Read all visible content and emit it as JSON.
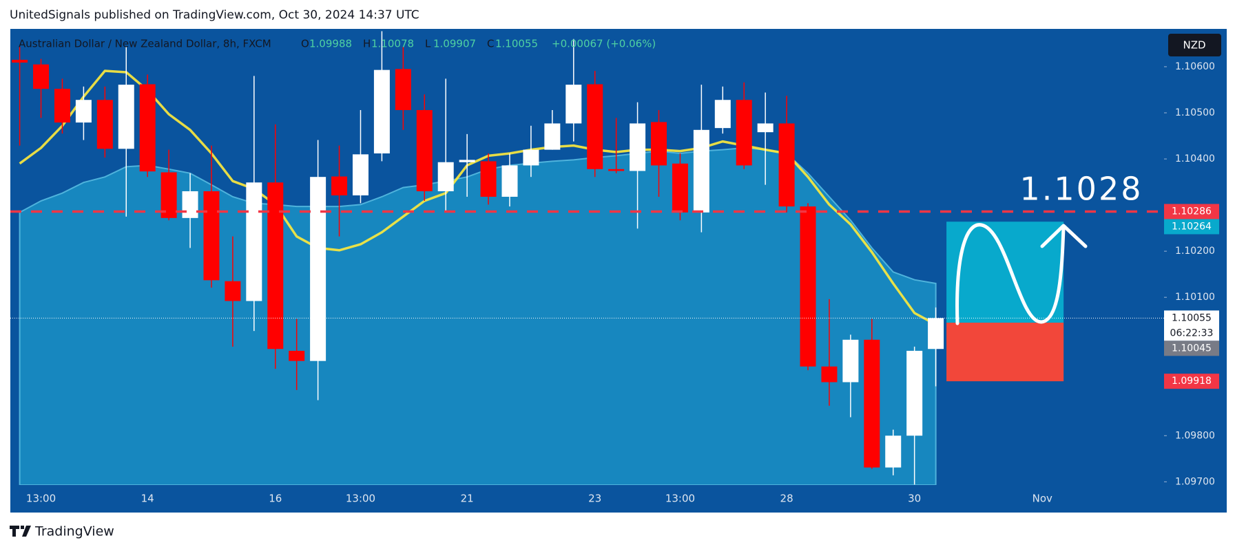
{
  "header": {
    "published": "UnitedSignals published on TradingView.com, Oct 30, 2024 14:37 UTC"
  },
  "footer": {
    "brand": "TradingView"
  },
  "chart_data": {
    "type": "candlestick",
    "title": "Australian Dollar / New Zealand Dollar, 8h, FXCM",
    "ohlc_legend": [
      {
        "key": "O",
        "value": "1.09988"
      },
      {
        "key": "H",
        "value": "1.10078"
      },
      {
        "key": "L",
        "value": "1.09907"
      },
      {
        "key": "C",
        "value": "1.10055"
      }
    ],
    "change": "+0.00067 (+0.06%)",
    "currency": "NZD",
    "categories": [
      null,
      "13:00",
      null,
      null,
      null,
      null,
      "14",
      null,
      null,
      null,
      null,
      null,
      "16",
      null,
      null,
      null,
      "13:00",
      null,
      null,
      null,
      null,
      "21",
      null,
      null,
      null,
      null,
      null,
      "23",
      null,
      null,
      null,
      "13:00",
      null,
      null,
      null,
      null,
      "28",
      null,
      null,
      null,
      null,
      null,
      "30",
      null,
      null,
      null,
      null,
      null,
      "Nov"
    ],
    "open": [
      1.10615,
      1.10605,
      1.10552,
      1.10479,
      1.10528,
      1.10422,
      1.10562,
      1.10371,
      1.10272,
      1.1033,
      1.10135,
      1.10092,
      1.10349,
      1.09984,
      1.09962,
      1.10362,
      1.10321,
      1.10412,
      1.10595,
      1.10506,
      1.1033,
      1.10393,
      1.10395,
      1.10318,
      1.10386,
      1.1042,
      1.10477,
      1.10562,
      1.10378,
      1.10374,
      1.1048,
      1.1039,
      1.10284,
      1.10467,
      1.10528,
      1.10458,
      1.10477,
      1.10297,
      1.0995,
      1.09916,
      1.10008,
      1.09731,
      1.098,
      1.09988,
      null,
      null,
      null,
      null,
      null
    ],
    "high": [
      1.10643,
      1.10617,
      1.10574,
      1.10557,
      1.10557,
      1.10643,
      1.10583,
      1.1042,
      1.10369,
      1.10429,
      1.10232,
      1.1058,
      1.10475,
      1.10053,
      1.10441,
      1.10429,
      1.10506,
      1.10677,
      1.10643,
      1.1054,
      1.10574,
      1.10454,
      1.10412,
      1.10412,
      1.10472,
      1.10506,
      1.1066,
      1.10591,
      1.10489,
      1.10523,
      1.10506,
      1.10412,
      1.10561,
      1.10557,
      1.10566,
      1.10544,
      1.10537,
      1.10304,
      1.10096,
      1.10019,
      1.10053,
      1.09813,
      1.09993,
      1.10078,
      null,
      null,
      null,
      null,
      null
    ],
    "low": [
      1.10429,
      1.10489,
      1.10455,
      1.10441,
      1.10403,
      1.10275,
      1.10361,
      1.10267,
      1.10207,
      1.10121,
      1.09993,
      1.10027,
      1.09945,
      1.09899,
      1.09877,
      1.10232,
      1.10304,
      1.10395,
      1.10463,
      1.10309,
      1.10284,
      1.10318,
      1.10301,
      1.10297,
      1.10361,
      1.1042,
      1.10438,
      1.10361,
      1.10369,
      1.10249,
      1.10318,
      1.10267,
      1.10241,
      1.10455,
      1.10378,
      1.10344,
      1.10284,
      1.09942,
      1.09865,
      1.0984,
      1.09728,
      1.09714,
      1.09694,
      1.09907,
      null,
      null,
      null,
      null,
      null
    ],
    "close": [
      1.10609,
      1.10552,
      1.10479,
      1.10528,
      1.10422,
      1.10561,
      1.10373,
      1.10272,
      1.1033,
      1.10137,
      1.10092,
      1.10349,
      1.09988,
      1.09962,
      1.10361,
      1.10321,
      1.1041,
      1.10593,
      1.10506,
      1.1033,
      1.10393,
      1.10398,
      1.10318,
      1.10386,
      1.1042,
      1.10477,
      1.10561,
      1.10378,
      1.10374,
      1.10477,
      1.10386,
      1.10284,
      1.10463,
      1.10528,
      1.10386,
      1.10477,
      1.10297,
      1.0995,
      1.09916,
      1.10008,
      1.09731,
      1.098,
      1.09984,
      1.10055,
      null,
      null,
      null,
      null,
      null
    ],
    "up_color": "#ffffff",
    "down_color": "#ff0000",
    "indicators": [
      {
        "style": "area",
        "color": "#1787bf",
        "values": [
          1.10284,
          1.10309,
          1.10326,
          1.10349,
          1.10361,
          1.10383,
          1.10386,
          1.10378,
          1.10369,
          1.10344,
          1.10318,
          1.10304,
          1.10301,
          1.10297,
          1.10297,
          1.10297,
          1.10301,
          1.10318,
          1.10338,
          1.10344,
          1.10352,
          1.10361,
          1.10378,
          1.10386,
          1.10391,
          1.10395,
          1.10398,
          1.10403,
          1.10407,
          1.10412,
          1.10417,
          1.10412,
          1.10417,
          1.1042,
          1.10424,
          1.1042,
          1.10412,
          1.10369,
          1.10318,
          1.10267,
          1.10207,
          1.10155,
          1.10138,
          1.1013,
          null,
          null,
          null,
          null,
          null
        ]
      },
      {
        "style": "line",
        "color": "#ffeb3b",
        "values": [
          1.1039,
          1.10424,
          1.10472,
          1.10535,
          1.10591,
          1.10588,
          1.10549,
          1.10497,
          1.10463,
          1.10412,
          1.10352,
          1.10335,
          1.10301,
          1.10232,
          1.10207,
          1.10202,
          1.10215,
          1.10241,
          1.10275,
          1.10309,
          1.10326,
          1.10386,
          1.10407,
          1.10412,
          1.1042,
          1.10426,
          1.10429,
          1.1042,
          1.10415,
          1.1042,
          1.1042,
          1.10417,
          1.10424,
          1.10438,
          1.10429,
          1.1042,
          1.10412,
          1.10361,
          1.10301,
          1.10258,
          1.10198,
          1.1013,
          1.10066,
          1.10041,
          null,
          null,
          null,
          null,
          null
        ]
      }
    ],
    "ylim": [
      1.09693,
      1.10682
    ],
    "yticks": [
      {
        "value": 1.106,
        "label": "1.10600"
      },
      {
        "value": 1.105,
        "label": "1.10500"
      },
      {
        "value": 1.104,
        "label": "1.10400"
      },
      {
        "value": 1.102,
        "label": "1.10200"
      },
      {
        "value": 1.101,
        "label": "1.10100"
      },
      {
        "value": 1.098,
        "label": "1.09800"
      },
      {
        "value": 1.097,
        "label": "1.09700"
      }
    ],
    "grid": false,
    "target_line": {
      "value": 1.10286,
      "color": "#f23645"
    },
    "current_price": {
      "value": 1.10055,
      "countdown": "06:22:33"
    },
    "position": {
      "target": 1.10264,
      "entry": 1.10045,
      "stop": 1.09918,
      "target_color": "#08a9cc",
      "stop_color": "#f2473a"
    },
    "price_labels": [
      {
        "value": 1.10286,
        "color": "#f23645"
      },
      {
        "value": 1.10264,
        "color": "#08a9cc"
      },
      {
        "value": 1.10045,
        "color": "#787b86"
      },
      {
        "value": 1.09918,
        "color": "#f23645"
      }
    ],
    "annotation": "1.1028"
  }
}
